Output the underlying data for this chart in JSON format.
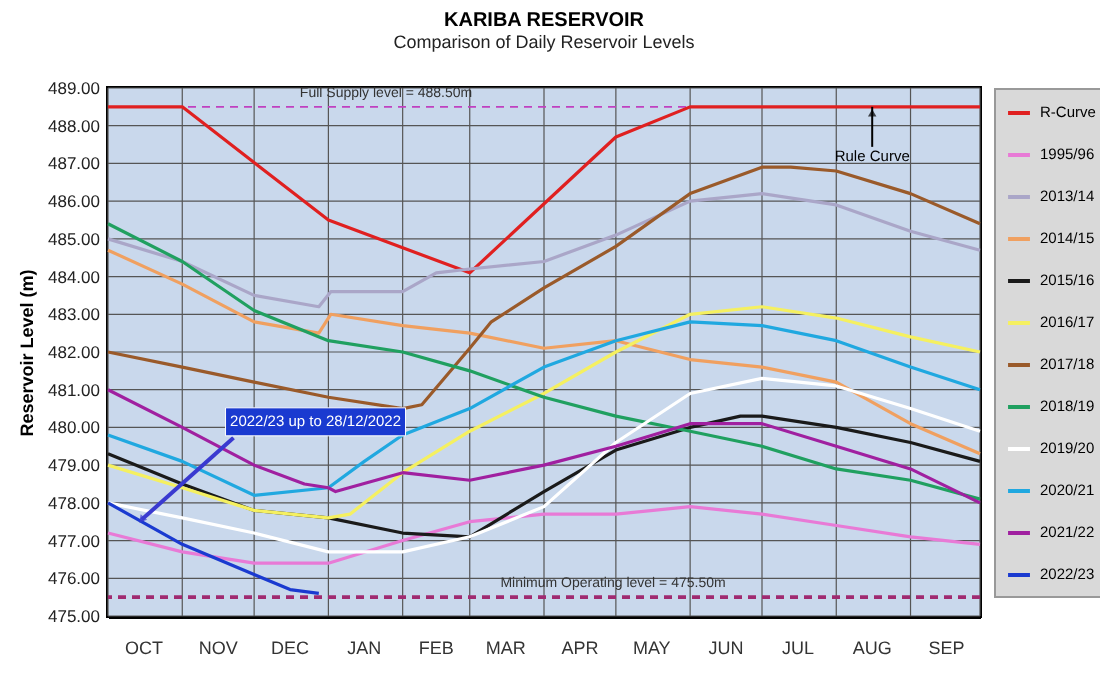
{
  "chart_data": {
    "type": "line",
    "title": "KARIBA RESERVOIR",
    "subtitle": "Comparison of Daily Reservoir Levels",
    "ylabel": "Reservoir Level (m)",
    "xlim": [
      "2022-10-01",
      "2023-09-30"
    ],
    "xticks": [
      {
        "value": "2022-10-01",
        "label": null
      },
      {
        "value": "2022-10-16",
        "label": "OCT"
      },
      {
        "value": "2022-11-01",
        "label": null
      },
      {
        "value": "2022-11-16",
        "label": "NOV"
      },
      {
        "value": "2022-12-01",
        "label": null
      },
      {
        "value": "2022-12-16",
        "label": "DEC"
      },
      {
        "value": "2023-01-01",
        "label": null
      },
      {
        "value": "2023-01-16",
        "label": "JAN"
      },
      {
        "value": "2023-02-01",
        "label": null
      },
      {
        "value": "2023-02-15",
        "label": "FEB"
      },
      {
        "value": "2023-03-01",
        "label": null
      },
      {
        "value": "2023-03-16",
        "label": "MAR"
      },
      {
        "value": "2023-04-01",
        "label": null
      },
      {
        "value": "2023-04-16",
        "label": "APR"
      },
      {
        "value": "2023-05-01",
        "label": null
      },
      {
        "value": "2023-05-16",
        "label": "MAY"
      },
      {
        "value": "2023-06-01",
        "label": null
      },
      {
        "value": "2023-06-16",
        "label": "JUN"
      },
      {
        "value": "2023-07-01",
        "label": null
      },
      {
        "value": "2023-07-16",
        "label": "JUL"
      },
      {
        "value": "2023-08-01",
        "label": null
      },
      {
        "value": "2023-08-16",
        "label": "AUG"
      },
      {
        "value": "2023-09-01",
        "label": null
      },
      {
        "value": "2023-09-16",
        "label": "SEP"
      },
      {
        "value": "2023-09-30",
        "label": null
      }
    ],
    "ylim": [
      475,
      489
    ],
    "yticks": [
      {
        "value": 475,
        "label": "475.00"
      },
      {
        "value": 476,
        "label": "476.00"
      },
      {
        "value": 477,
        "label": "477.00"
      },
      {
        "value": 478,
        "label": "478.00"
      },
      {
        "value": 479,
        "label": "479.00"
      },
      {
        "value": 480,
        "label": "480.00"
      },
      {
        "value": 481,
        "label": "481.00"
      },
      {
        "value": 482,
        "label": "482.00"
      },
      {
        "value": 483,
        "label": "483.00"
      },
      {
        "value": 484,
        "label": "484.00"
      },
      {
        "value": 485,
        "label": "485.00"
      },
      {
        "value": 486,
        "label": "486.00"
      },
      {
        "value": 487,
        "label": "487.00"
      },
      {
        "value": 488,
        "label": "488.00"
      },
      {
        "value": 489,
        "label": "489.00"
      }
    ],
    "grid": true,
    "legend": "right",
    "marker": "none",
    "line_style": "solid",
    "series": [
      {
        "name": "R-Curve",
        "color": "#e02020",
        "x": [
          "2022-10-01",
          "2022-11-01",
          "2023-01-01",
          "2023-03-01",
          "2023-05-01",
          "2023-06-01",
          "2023-09-30"
        ],
        "values": [
          488.5,
          488.5,
          485.5,
          484.1,
          487.7,
          488.5,
          488.5
        ]
      },
      {
        "name": "1995/96",
        "color": "#e87ad6",
        "x": [
          "2022-10-01",
          "2022-11-01",
          "2022-12-01",
          "2023-01-01",
          "2023-02-01",
          "2023-03-01",
          "2023-04-01",
          "2023-05-01",
          "2023-06-01",
          "2023-07-01",
          "2023-08-01",
          "2023-09-01",
          "2023-09-30"
        ],
        "values": [
          477.2,
          476.7,
          476.4,
          476.4,
          477.0,
          477.5,
          477.7,
          477.7,
          477.9,
          477.7,
          477.4,
          477.1,
          476.9
        ]
      },
      {
        "name": "2013/14",
        "color": "#aaa6c8",
        "x": [
          "2022-10-01",
          "2022-11-01",
          "2022-12-01",
          "2022-12-28",
          "2023-01-02",
          "2023-02-01",
          "2023-02-15",
          "2023-03-01",
          "2023-04-01",
          "2023-05-01",
          "2023-06-01",
          "2023-07-01",
          "2023-08-01",
          "2023-09-01",
          "2023-09-30"
        ],
        "values": [
          485.0,
          484.4,
          483.5,
          483.2,
          483.6,
          483.6,
          484.1,
          484.2,
          484.4,
          485.1,
          486.0,
          486.2,
          485.9,
          485.2,
          484.7
        ]
      },
      {
        "name": "2014/15",
        "color": "#f0a060",
        "x": [
          "2022-10-01",
          "2022-11-01",
          "2022-12-01",
          "2022-12-28",
          "2023-01-02",
          "2023-02-01",
          "2023-03-01",
          "2023-04-01",
          "2023-05-01",
          "2023-06-01",
          "2023-07-01",
          "2023-08-01",
          "2023-09-01",
          "2023-09-30"
        ],
        "values": [
          484.7,
          483.8,
          482.8,
          482.5,
          483.0,
          482.7,
          482.5,
          482.1,
          482.3,
          481.8,
          481.6,
          481.2,
          480.1,
          479.3
        ]
      },
      {
        "name": "2015/16",
        "color": "#1a1a1a",
        "x": [
          "2022-10-01",
          "2022-11-01",
          "2022-12-01",
          "2023-01-01",
          "2023-02-01",
          "2023-03-01",
          "2023-04-01",
          "2023-05-01",
          "2023-06-01",
          "2023-06-22",
          "2023-07-01",
          "2023-08-01",
          "2023-09-01",
          "2023-09-30"
        ],
        "values": [
          479.3,
          478.5,
          477.8,
          477.6,
          477.2,
          477.1,
          478.3,
          479.4,
          480.0,
          480.3,
          480.3,
          480.0,
          479.6,
          479.1
        ]
      },
      {
        "name": "2016/17",
        "color": "#f5f060",
        "x": [
          "2022-10-01",
          "2022-11-01",
          "2022-12-01",
          "2023-01-01",
          "2023-01-10",
          "2023-02-01",
          "2023-03-01",
          "2023-04-01",
          "2023-05-01",
          "2023-06-01",
          "2023-07-01",
          "2023-08-01",
          "2023-09-01",
          "2023-09-30"
        ],
        "values": [
          479.0,
          478.4,
          477.8,
          477.6,
          477.7,
          478.8,
          479.9,
          480.9,
          482.0,
          483.0,
          483.2,
          482.9,
          482.4,
          482.0
        ]
      },
      {
        "name": "2017/18",
        "color": "#9a5a2a",
        "x": [
          "2022-10-01",
          "2022-11-01",
          "2022-12-01",
          "2023-01-01",
          "2023-02-01",
          "2023-02-09",
          "2023-03-01",
          "2023-03-10",
          "2023-04-01",
          "2023-05-01",
          "2023-06-01",
          "2023-07-01",
          "2023-07-13",
          "2023-08-01",
          "2023-09-01",
          "2023-09-30"
        ],
        "values": [
          482.0,
          481.6,
          481.2,
          480.8,
          480.5,
          480.6,
          482.1,
          482.8,
          483.7,
          484.8,
          486.2,
          486.9,
          486.9,
          486.8,
          486.2,
          485.4
        ]
      },
      {
        "name": "2018/19",
        "color": "#20a060",
        "x": [
          "2022-10-01",
          "2022-11-01",
          "2022-12-01",
          "2023-01-01",
          "2023-02-01",
          "2023-03-01",
          "2023-04-01",
          "2023-05-01",
          "2023-06-01",
          "2023-07-01",
          "2023-08-01",
          "2023-09-01",
          "2023-09-30"
        ],
        "values": [
          485.4,
          484.4,
          483.1,
          482.3,
          482.0,
          481.5,
          480.8,
          480.3,
          479.9,
          479.5,
          478.9,
          478.6,
          478.1
        ]
      },
      {
        "name": "2019/20",
        "color": "#ffffff",
        "x": [
          "2022-10-01",
          "2022-11-01",
          "2022-12-01",
          "2023-01-01",
          "2023-02-01",
          "2023-03-01",
          "2023-04-01",
          "2023-05-01",
          "2023-06-01",
          "2023-07-01",
          "2023-08-01",
          "2023-09-01",
          "2023-09-30"
        ],
        "values": [
          478.0,
          477.6,
          477.2,
          476.7,
          476.7,
          477.1,
          477.9,
          479.6,
          480.9,
          481.3,
          481.1,
          480.5,
          479.9
        ]
      },
      {
        "name": "2020/21",
        "color": "#20a8e0",
        "x": [
          "2022-10-01",
          "2022-11-01",
          "2022-12-01",
          "2023-01-01",
          "2023-01-16",
          "2023-02-01",
          "2023-03-01",
          "2023-04-01",
          "2023-05-01",
          "2023-06-01",
          "2023-07-01",
          "2023-08-01",
          "2023-09-01",
          "2023-09-30"
        ],
        "values": [
          479.8,
          479.1,
          478.2,
          478.4,
          479.1,
          479.8,
          480.5,
          481.6,
          482.3,
          482.8,
          482.7,
          482.3,
          481.6,
          481.0
        ]
      },
      {
        "name": "2021/22",
        "color": "#a020a0",
        "x": [
          "2022-10-01",
          "2022-11-01",
          "2022-12-01",
          "2022-12-22",
          "2023-01-01",
          "2023-01-04",
          "2023-02-01",
          "2023-03-01",
          "2023-04-01",
          "2023-05-01",
          "2023-06-01",
          "2023-07-01",
          "2023-08-01",
          "2023-09-01",
          "2023-09-30"
        ],
        "values": [
          481.0,
          480.0,
          479.0,
          478.5,
          478.4,
          478.3,
          478.8,
          478.6,
          479.0,
          479.5,
          480.1,
          480.1,
          479.5,
          478.9,
          478.0
        ]
      },
      {
        "name": "2022/23",
        "color": "#1a3ad0",
        "x": [
          "2022-10-01",
          "2022-11-01",
          "2022-12-01",
          "2022-12-16",
          "2022-12-28"
        ],
        "values": [
          478.0,
          476.9,
          476.1,
          475.7,
          475.6
        ]
      }
    ],
    "ref_lines": [
      {
        "axis": "y",
        "value": 488.5,
        "label": "Full Supply level = 488.50m",
        "color": "#c040c0",
        "line_style": "dashed"
      },
      {
        "axis": "y",
        "value": 475.5,
        "label": "Minimum Operating level = 475.50m",
        "color": "#a02a70",
        "line_style": "dashed"
      }
    ],
    "annotations": [
      {
        "text": "Rule Curve",
        "x": "2023-08-16",
        "y": 488.5
      },
      {
        "text": "2022/23 up to 28/12/2022",
        "x": "2022-10-15",
        "y": 477.55
      }
    ]
  }
}
